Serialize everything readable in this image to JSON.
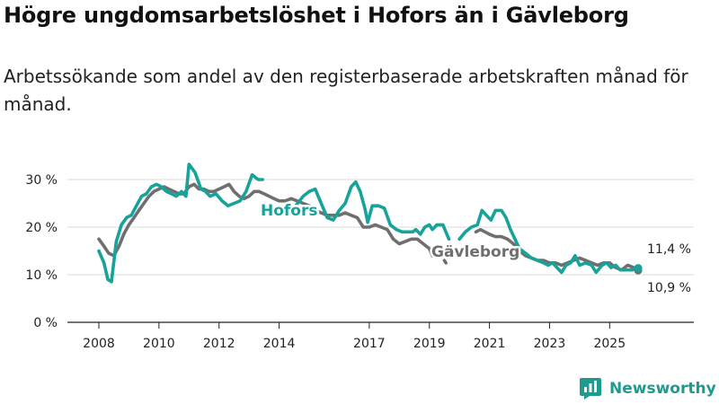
{
  "title": "Högre ungdomsarbetslöshet i Hofors än i Gävleborg",
  "subtitle": "Arbetssökande som andel av den registerbaserade arbetskraften månad för månad.",
  "brand": "Newsworthy",
  "colors": {
    "hofors": "#17a39a",
    "gavleborg": "#6f6f6f",
    "grid": "#d9d9d9",
    "axis": "#222222",
    "brand": "#1e9a8f"
  },
  "chart_data": {
    "type": "line",
    "title": "Högre ungdomsarbetslöshet i Hofors än i Gävleborg",
    "xlabel": "",
    "ylabel": "",
    "xlim": [
      2007.7,
      2026.6
    ],
    "ylim": [
      0,
      33
    ],
    "yticks": [
      0,
      10,
      20,
      30
    ],
    "ytick_labels": [
      "0 %",
      "10 %",
      "20 %",
      "30 %"
    ],
    "xticks": [
      2008,
      2010,
      2012,
      2014,
      2017,
      2019,
      2021,
      2023,
      2025
    ],
    "xtick_labels": [
      "2008",
      "2010",
      "2012",
      "2014",
      "2017",
      "2019",
      "2021",
      "2023",
      "2025"
    ],
    "series": [
      {
        "name": "Hofors",
        "label": "Hofors",
        "end_label": "11,4 %",
        "end_value": 11.4,
        "segments": [
          [
            [
              2008.0,
              15.0
            ],
            [
              2008.17,
              12.5
            ],
            [
              2008.3,
              9.0
            ],
            [
              2008.42,
              8.5
            ],
            [
              2008.58,
              17.0
            ],
            [
              2008.75,
              20.5
            ],
            [
              2008.92,
              22.0
            ],
            [
              2009.08,
              22.5
            ],
            [
              2009.25,
              24.5
            ],
            [
              2009.42,
              26.5
            ],
            [
              2009.58,
              27.0
            ],
            [
              2009.75,
              28.5
            ],
            [
              2009.92,
              29.0
            ],
            [
              2010.08,
              28.5
            ],
            [
              2010.25,
              27.5
            ],
            [
              2010.42,
              27.0
            ],
            [
              2010.58,
              26.5
            ],
            [
              2010.75,
              27.5
            ],
            [
              2010.9,
              26.5
            ],
            [
              2011.0,
              33.2
            ],
            [
              2011.2,
              31.5
            ],
            [
              2011.4,
              28.0
            ],
            [
              2011.55,
              27.5
            ],
            [
              2011.7,
              26.5
            ],
            [
              2011.9,
              27.0
            ],
            [
              2012.1,
              25.5
            ],
            [
              2012.3,
              24.5
            ],
            [
              2012.5,
              25.0
            ],
            [
              2012.7,
              25.5
            ],
            [
              2012.9,
              27.5
            ],
            [
              2013.1,
              31.0
            ],
            [
              2013.3,
              30.0
            ],
            [
              2013.45,
              30.0
            ]
          ],
          [
            [
              2014.55,
              24.5
            ],
            [
              2014.8,
              26.5
            ],
            [
              2015.0,
              27.5
            ],
            [
              2015.2,
              28.0
            ],
            [
              2015.4,
              25.0
            ],
            [
              2015.6,
              22.0
            ],
            [
              2015.8,
              21.5
            ],
            [
              2016.0,
              23.5
            ],
            [
              2016.2,
              25.0
            ],
            [
              2016.4,
              28.5
            ],
            [
              2016.55,
              29.5
            ],
            [
              2016.7,
              27.5
            ],
            [
              2016.85,
              24.0
            ],
            [
              2016.95,
              21.0
            ],
            [
              2017.1,
              24.5
            ],
            [
              2017.3,
              24.5
            ],
            [
              2017.5,
              24.0
            ],
            [
              2017.7,
              20.5
            ],
            [
              2017.9,
              19.5
            ],
            [
              2018.1,
              19.0
            ],
            [
              2018.3,
              19.0
            ],
            [
              2018.45,
              19.0
            ],
            [
              2018.55,
              19.5
            ],
            [
              2018.7,
              18.5
            ],
            [
              2018.85,
              20.0
            ],
            [
              2019.0,
              20.5
            ],
            [
              2019.1,
              19.5
            ],
            [
              2019.25,
              20.5
            ],
            [
              2019.45,
              20.5
            ],
            [
              2019.55,
              19.0
            ],
            [
              2019.65,
              17.5
            ]
          ],
          [
            [
              2020.0,
              17.5
            ],
            [
              2020.2,
              19.0
            ],
            [
              2020.4,
              20.0
            ],
            [
              2020.6,
              20.5
            ],
            [
              2020.75,
              23.5
            ],
            [
              2020.9,
              22.5
            ],
            [
              2021.05,
              21.5
            ],
            [
              2021.2,
              23.5
            ],
            [
              2021.4,
              23.5
            ],
            [
              2021.55,
              22.0
            ],
            [
              2021.7,
              19.5
            ],
            [
              2021.85,
              17.5
            ],
            [
              2022.0,
              15.5
            ],
            [
              2022.2,
              14.5
            ],
            [
              2022.4,
              13.5
            ],
            [
              2022.6,
              13.0
            ],
            [
              2022.8,
              12.5
            ],
            [
              2022.95,
              12.0
            ],
            [
              2023.1,
              12.5
            ],
            [
              2023.25,
              11.5
            ],
            [
              2023.4,
              10.5
            ],
            [
              2023.55,
              12.0
            ],
            [
              2023.7,
              12.5
            ],
            [
              2023.85,
              14.0
            ],
            [
              2024.0,
              12.0
            ],
            [
              2024.2,
              12.5
            ],
            [
              2024.4,
              12.0
            ],
            [
              2024.55,
              10.5
            ],
            [
              2024.75,
              12.0
            ],
            [
              2024.9,
              12.5
            ],
            [
              2025.05,
              11.5
            ],
            [
              2025.2,
              12.0
            ],
            [
              2025.35,
              11.0
            ],
            [
              2025.55,
              11.0
            ],
            [
              2025.75,
              11.0
            ],
            [
              2025.95,
              11.4
            ]
          ]
        ]
      },
      {
        "name": "Gävleborg",
        "label": "Gävleborg",
        "end_label": "10,9 %",
        "end_value": 10.9,
        "segments": [
          [
            [
              2008.0,
              17.5
            ],
            [
              2008.17,
              16.0
            ],
            [
              2008.33,
              14.5
            ],
            [
              2008.5,
              14.0
            ],
            [
              2008.67,
              16.0
            ],
            [
              2008.83,
              18.5
            ],
            [
              2009.0,
              20.5
            ],
            [
              2009.17,
              22.0
            ],
            [
              2009.33,
              23.5
            ],
            [
              2009.5,
              25.0
            ],
            [
              2009.67,
              26.5
            ],
            [
              2009.83,
              27.5
            ],
            [
              2010.0,
              28.0
            ],
            [
              2010.17,
              28.5
            ],
            [
              2010.33,
              28.0
            ],
            [
              2010.5,
              27.5
            ],
            [
              2010.67,
              27.0
            ],
            [
              2010.83,
              27.0
            ],
            [
              2011.0,
              28.5
            ],
            [
              2011.17,
              29.0
            ],
            [
              2011.33,
              28.0
            ],
            [
              2011.5,
              28.0
            ],
            [
              2011.67,
              27.5
            ],
            [
              2011.83,
              27.5
            ],
            [
              2012.0,
              28.0
            ],
            [
              2012.17,
              28.5
            ],
            [
              2012.33,
              29.0
            ],
            [
              2012.5,
              27.5
            ],
            [
              2012.67,
              26.5
            ],
            [
              2012.83,
              26.0
            ],
            [
              2013.0,
              26.5
            ],
            [
              2013.17,
              27.5
            ],
            [
              2013.33,
              27.5
            ],
            [
              2013.5,
              27.0
            ],
            [
              2013.67,
              26.5
            ],
            [
              2013.83,
              26.0
            ],
            [
              2014.0,
              25.5
            ],
            [
              2014.2,
              25.5
            ],
            [
              2014.4,
              26.0
            ],
            [
              2014.6,
              25.5
            ],
            [
              2014.8,
              25.0
            ],
            [
              2015.0,
              24.5
            ],
            [
              2015.2,
              23.5
            ],
            [
              2015.4,
              23.0
            ],
            [
              2015.6,
              22.5
            ],
            [
              2015.8,
              22.5
            ],
            [
              2016.0,
              22.5
            ],
            [
              2016.2,
              23.0
            ],
            [
              2016.4,
              22.5
            ],
            [
              2016.6,
              22.0
            ],
            [
              2016.8,
              20.0
            ],
            [
              2017.0,
              20.0
            ],
            [
              2017.2,
              20.5
            ],
            [
              2017.4,
              20.0
            ],
            [
              2017.6,
              19.5
            ],
            [
              2017.8,
              17.5
            ],
            [
              2018.0,
              16.5
            ],
            [
              2018.2,
              17.0
            ],
            [
              2018.4,
              17.5
            ],
            [
              2018.6,
              17.5
            ],
            [
              2018.8,
              16.5
            ],
            [
              2019.0,
              15.5
            ],
            [
              2019.1,
              14.0
            ]
          ],
          [
            [
              2019.5,
              13.0
            ],
            [
              2019.55,
              12.5
            ]
          ],
          [
            [
              2020.55,
              19.0
            ],
            [
              2020.7,
              19.5
            ],
            [
              2020.85,
              19.0
            ],
            [
              2021.0,
              18.5
            ],
            [
              2021.2,
              18.0
            ],
            [
              2021.4,
              18.0
            ],
            [
              2021.6,
              17.5
            ],
            [
              2021.8,
              16.5
            ],
            [
              2022.0,
              15.0
            ],
            [
              2022.2,
              14.0
            ],
            [
              2022.4,
              13.5
            ],
            [
              2022.6,
              13.0
            ],
            [
              2022.8,
              13.0
            ],
            [
              2023.0,
              12.5
            ],
            [
              2023.2,
              12.5
            ],
            [
              2023.4,
              12.0
            ],
            [
              2023.6,
              12.5
            ],
            [
              2023.8,
              13.0
            ],
            [
              2024.0,
              13.5
            ],
            [
              2024.2,
              13.0
            ],
            [
              2024.4,
              12.5
            ],
            [
              2024.6,
              12.0
            ],
            [
              2024.8,
              12.5
            ],
            [
              2025.0,
              12.5
            ],
            [
              2025.2,
              11.5
            ],
            [
              2025.4,
              11.0
            ],
            [
              2025.6,
              12.0
            ],
            [
              2025.8,
              11.5
            ],
            [
              2025.95,
              10.9
            ]
          ]
        ]
      }
    ]
  }
}
